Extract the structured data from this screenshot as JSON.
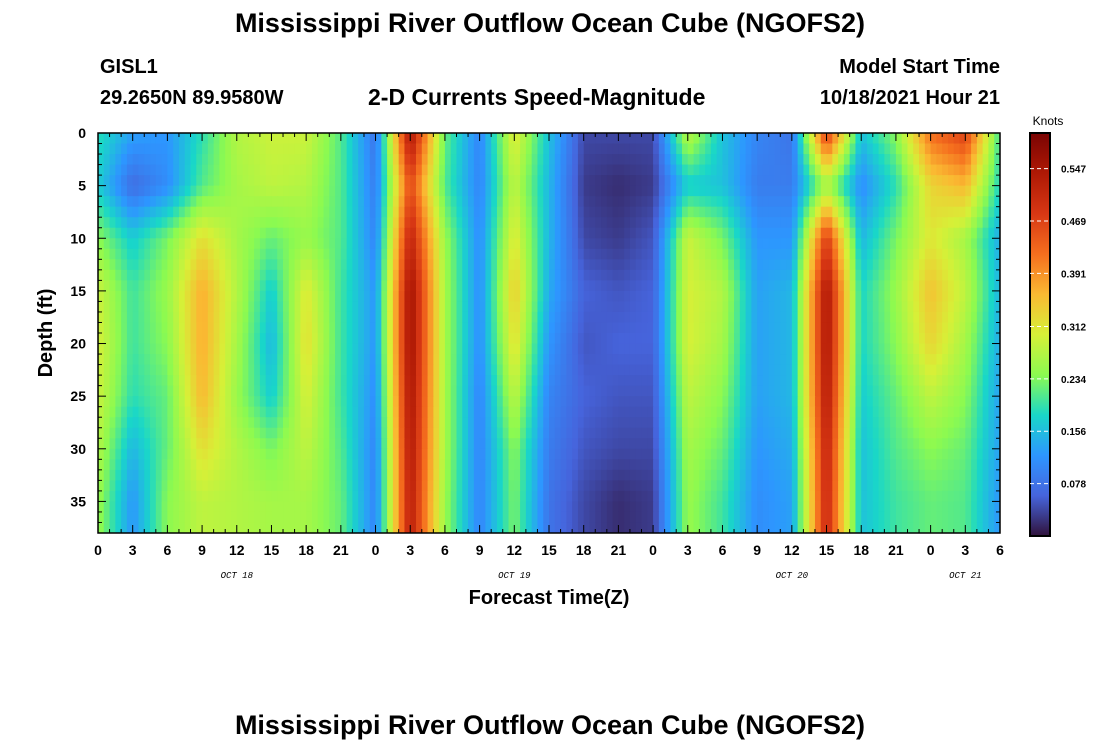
{
  "header": {
    "title": "Mississippi River Outflow Ocean Cube (NGOFS2)",
    "station": "GISL1",
    "coords": "29.2650N  89.9580W",
    "subtitle": "2-D Currents Speed-Magnitude",
    "model_start_label": "Model Start Time",
    "model_start_value": "10/18/2021 Hour 21",
    "footer_title": "Mississippi River Outflow Ocean Cube (NGOFS2)"
  },
  "chart_data": {
    "type": "heatmap",
    "title": "2-D Currents Speed-Magnitude",
    "xlabel": "Forecast Time(Z)",
    "ylabel": "Depth (ft)",
    "x_range_hours": [
      0,
      78
    ],
    "x_ticks": [
      "0",
      "3",
      "6",
      "9",
      "12",
      "15",
      "18",
      "21",
      "0",
      "3",
      "6",
      "9",
      "12",
      "15",
      "18",
      "21",
      "0",
      "3",
      "6",
      "9",
      "12",
      "15",
      "18",
      "21",
      "0",
      "3",
      "6"
    ],
    "date_labels": [
      {
        "label": "OCT 18",
        "hour": 12
      },
      {
        "label": "OCT 19",
        "hour": 36
      },
      {
        "label": "OCT 20",
        "hour": 60
      },
      {
        "label": "OCT 21",
        "hour": 75
      }
    ],
    "y_range": [
      0,
      38
    ],
    "y_ticks": [
      0,
      5,
      10,
      15,
      20,
      25,
      30,
      35
    ],
    "y_inverted": true,
    "colorbar": {
      "title": "Knots",
      "min": 0.0,
      "max": 0.6,
      "labels": [
        "0.547",
        "0.469",
        "0.391",
        "0.312",
        "0.234",
        "0.156",
        "0.078"
      ],
      "values": [
        0.547,
        0.469,
        0.391,
        0.312,
        0.234,
        0.156,
        0.078
      ]
    },
    "grid_x_hours": [
      0,
      3,
      6,
      9,
      12,
      15,
      18,
      21,
      24,
      27,
      30,
      33,
      36,
      39,
      42,
      45,
      48,
      51,
      54,
      57,
      60,
      63,
      66,
      69,
      72,
      75,
      78
    ],
    "grid_y_depths": [
      0,
      5,
      10,
      15,
      20,
      25,
      30,
      35
    ],
    "speed_knots": [
      [
        0.19,
        0.13,
        0.12,
        0.19,
        0.27,
        0.29,
        0.29,
        0.21,
        0.08,
        0.55,
        0.22,
        0.1,
        0.31,
        0.16,
        0.04,
        0.04,
        0.04,
        0.28,
        0.16,
        0.1,
        0.08,
        0.48,
        0.16,
        0.24,
        0.42,
        0.47,
        0.2
      ],
      [
        0.17,
        0.07,
        0.11,
        0.21,
        0.26,
        0.28,
        0.27,
        0.21,
        0.09,
        0.46,
        0.21,
        0.1,
        0.28,
        0.15,
        0.03,
        0.02,
        0.03,
        0.17,
        0.16,
        0.09,
        0.09,
        0.26,
        0.11,
        0.19,
        0.33,
        0.36,
        0.18
      ],
      [
        0.24,
        0.17,
        0.23,
        0.32,
        0.26,
        0.22,
        0.25,
        0.21,
        0.1,
        0.52,
        0.25,
        0.11,
        0.31,
        0.15,
        0.04,
        0.03,
        0.05,
        0.29,
        0.23,
        0.12,
        0.12,
        0.48,
        0.15,
        0.23,
        0.31,
        0.26,
        0.14
      ],
      [
        0.29,
        0.2,
        0.25,
        0.37,
        0.27,
        0.17,
        0.31,
        0.2,
        0.12,
        0.56,
        0.26,
        0.11,
        0.34,
        0.14,
        0.06,
        0.05,
        0.06,
        0.3,
        0.27,
        0.13,
        0.15,
        0.55,
        0.18,
        0.25,
        0.35,
        0.28,
        0.15
      ],
      [
        0.3,
        0.2,
        0.24,
        0.37,
        0.26,
        0.15,
        0.32,
        0.2,
        0.12,
        0.56,
        0.26,
        0.11,
        0.32,
        0.12,
        0.05,
        0.06,
        0.06,
        0.3,
        0.26,
        0.13,
        0.15,
        0.55,
        0.18,
        0.24,
        0.33,
        0.26,
        0.14
      ],
      [
        0.29,
        0.19,
        0.22,
        0.36,
        0.25,
        0.17,
        0.3,
        0.2,
        0.11,
        0.55,
        0.26,
        0.1,
        0.28,
        0.1,
        0.06,
        0.05,
        0.05,
        0.28,
        0.24,
        0.13,
        0.15,
        0.54,
        0.17,
        0.22,
        0.28,
        0.24,
        0.13
      ],
      [
        0.27,
        0.15,
        0.22,
        0.32,
        0.27,
        0.23,
        0.28,
        0.21,
        0.1,
        0.54,
        0.26,
        0.1,
        0.24,
        0.09,
        0.05,
        0.04,
        0.04,
        0.26,
        0.22,
        0.12,
        0.14,
        0.52,
        0.16,
        0.21,
        0.24,
        0.22,
        0.13
      ],
      [
        0.25,
        0.12,
        0.24,
        0.28,
        0.27,
        0.26,
        0.26,
        0.22,
        0.1,
        0.53,
        0.25,
        0.1,
        0.23,
        0.08,
        0.04,
        0.02,
        0.03,
        0.25,
        0.2,
        0.11,
        0.13,
        0.51,
        0.16,
        0.2,
        0.22,
        0.21,
        0.12
      ]
    ]
  }
}
